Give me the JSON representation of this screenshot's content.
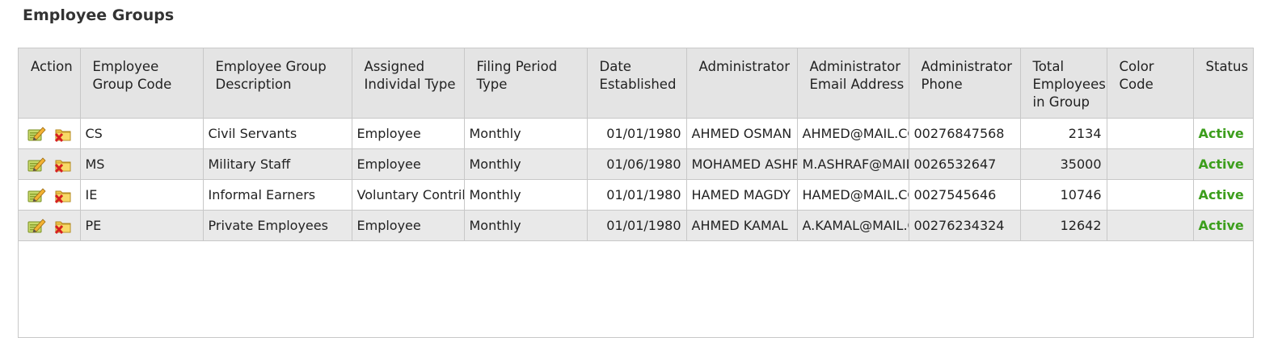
{
  "page": {
    "title": "Employee Groups"
  },
  "table": {
    "columns": [
      "Action",
      "Employee Group Code",
      "Employee Group Description",
      "Assigned Individal Type",
      "Filing Period Type",
      "Date Established",
      "Administrator",
      "Administrator Email Address",
      "Administrator Phone",
      "Total Employees in Group",
      "Color Code",
      "Status"
    ],
    "rows": [
      {
        "code": "CS",
        "description": "Civil Servants",
        "individual_type": "Employee",
        "filing_period": "Monthly",
        "date_established": "01/01/1980",
        "administrator": "AHMED OSMAN",
        "email": "AHMED@MAIL.CO",
        "phone": "00276847568",
        "total_employees": "2134",
        "color_code": "",
        "status": "Active"
      },
      {
        "code": "MS",
        "description": "Military Staff",
        "individual_type": "Employee",
        "filing_period": "Monthly",
        "date_established": "01/06/1980",
        "administrator": "MOHAMED ASHRA",
        "email": "M.ASHRAF@MAIL.",
        "phone": "0026532647",
        "total_employees": "35000",
        "color_code": "",
        "status": "Active"
      },
      {
        "code": "IE",
        "description": "Informal Earners",
        "individual_type": "Voluntary Contribu",
        "filing_period": "Monthly",
        "date_established": "01/01/1980",
        "administrator": "HAMED MAGDY",
        "email": "HAMED@MAIL.CO",
        "phone": "0027545646",
        "total_employees": "10746",
        "color_code": "",
        "status": "Active"
      },
      {
        "code": "PE",
        "description": "Private Employees",
        "individual_type": "Employee",
        "filing_period": "Monthly",
        "date_established": "01/01/1980",
        "administrator": "AHMED KAMAL",
        "email": "A.KAMAL@MAIL.C",
        "phone": "00276234324",
        "total_employees": "12642",
        "color_code": "",
        "status": "Active"
      }
    ]
  },
  "icons": {
    "edit": "edit-pencil-icon",
    "delete": "delete-folder-icon"
  },
  "colors": {
    "status_active": "#3c9e1c",
    "header_bg": "#e4e4e4",
    "alt_row_bg": "#e9e9e9"
  }
}
